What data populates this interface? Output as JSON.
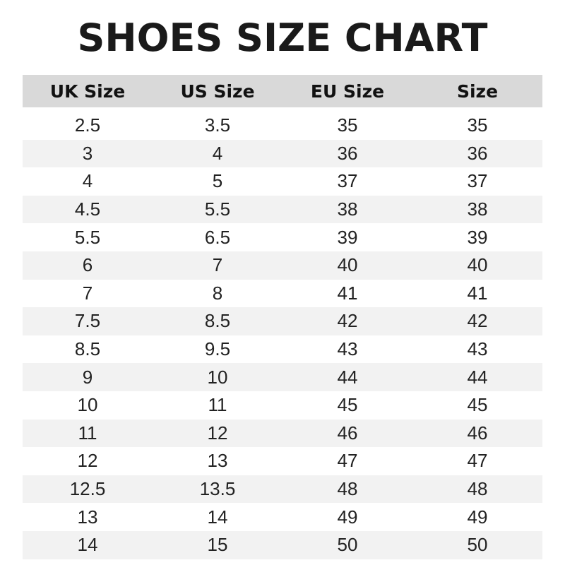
{
  "title": "SHOES SIZE CHART",
  "table": {
    "headers": [
      "UK Size",
      "US Size",
      "EU Size",
      "Size"
    ],
    "rows": [
      [
        "2.5",
        "3.5",
        "35",
        "35"
      ],
      [
        "3",
        "4",
        "36",
        "36"
      ],
      [
        "4",
        "5",
        "37",
        "37"
      ],
      [
        "4.5",
        "5.5",
        "38",
        "38"
      ],
      [
        "5.5",
        "6.5",
        "39",
        "39"
      ],
      [
        "6",
        "7",
        "40",
        "40"
      ],
      [
        "7",
        "8",
        "41",
        "41"
      ],
      [
        "7.5",
        "8.5",
        "42",
        "42"
      ],
      [
        "8.5",
        "9.5",
        "43",
        "43"
      ],
      [
        "9",
        "10",
        "44",
        "44"
      ],
      [
        "10",
        "11",
        "45",
        "45"
      ],
      [
        "11",
        "12",
        "46",
        "46"
      ],
      [
        "12",
        "13",
        "47",
        "47"
      ],
      [
        "12.5",
        "13.5",
        "48",
        "48"
      ],
      [
        "13",
        "14",
        "49",
        "49"
      ],
      [
        "14",
        "15",
        "50",
        "50"
      ]
    ]
  },
  "colors": {
    "header_bg": "#d9d9d9",
    "stripe_bg": "#f2f2f2",
    "text": "#1a1a1a"
  }
}
